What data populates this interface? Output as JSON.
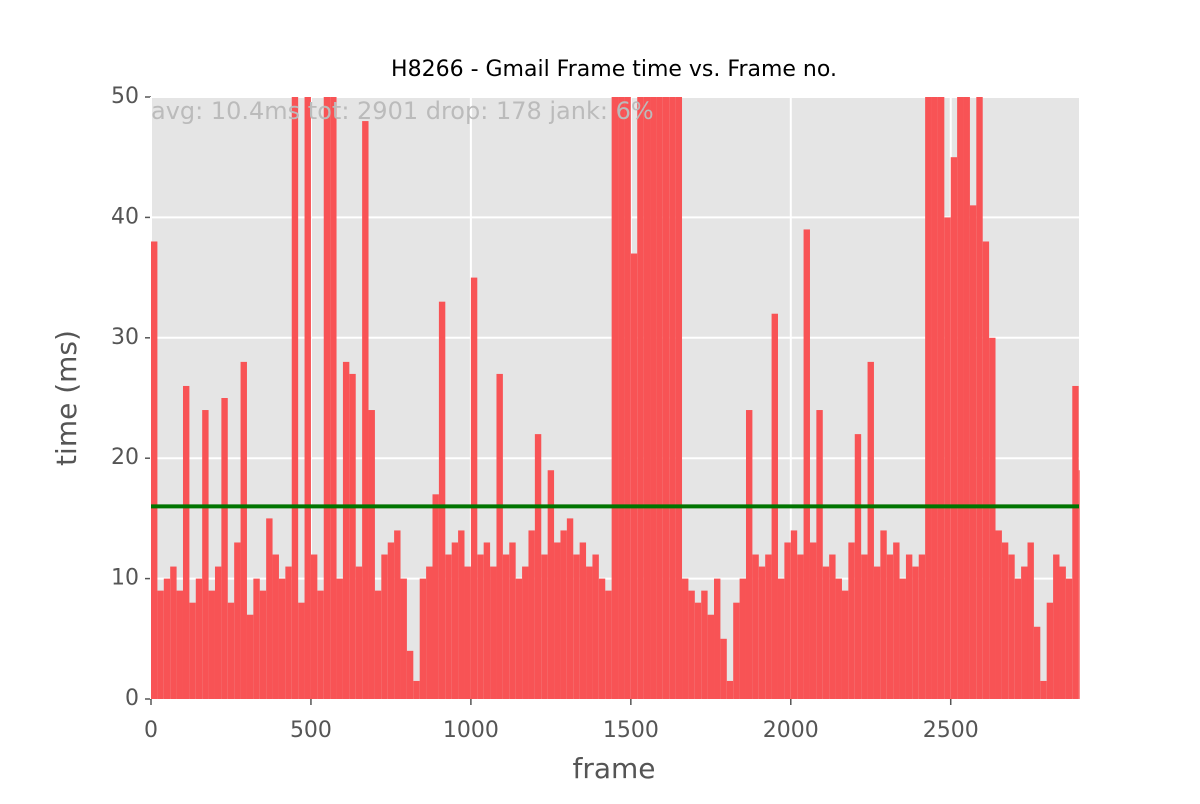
{
  "chart_data": {
    "type": "bar",
    "title": "H8266 - Gmail Frame time vs. Frame no.",
    "annotation": "avg: 10.4ms tot: 2901 drop: 178 jank: 6%",
    "xlabel": "frame",
    "ylabel": "time (ms)",
    "x": [
      0,
      20,
      40,
      60,
      80,
      100,
      120,
      140,
      160,
      180,
      200,
      220,
      240,
      260,
      280,
      300,
      320,
      340,
      360,
      380,
      400,
      420,
      440,
      460,
      480,
      500,
      520,
      540,
      560,
      580,
      600,
      620,
      640,
      660,
      680,
      700,
      720,
      740,
      760,
      780,
      800,
      820,
      840,
      860,
      880,
      900,
      920,
      940,
      960,
      980,
      1000,
      1020,
      1040,
      1060,
      1080,
      1100,
      1120,
      1140,
      1160,
      1180,
      1200,
      1220,
      1240,
      1260,
      1280,
      1300,
      1320,
      1340,
      1360,
      1380,
      1400,
      1420,
      1440,
      1460,
      1480,
      1500,
      1520,
      1540,
      1560,
      1580,
      1600,
      1620,
      1640,
      1660,
      1680,
      1700,
      1720,
      1740,
      1760,
      1780,
      1800,
      1820,
      1840,
      1860,
      1880,
      1900,
      1920,
      1940,
      1960,
      1980,
      2000,
      2020,
      2040,
      2060,
      2080,
      2100,
      2120,
      2140,
      2160,
      2180,
      2200,
      2220,
      2240,
      2260,
      2280,
      2300,
      2320,
      2340,
      2360,
      2380,
      2400,
      2420,
      2440,
      2460,
      2480,
      2500,
      2520,
      2540,
      2560,
      2580,
      2600,
      2620,
      2640,
      2660,
      2680,
      2700,
      2720,
      2740,
      2760,
      2780,
      2800,
      2820,
      2840,
      2860,
      2880,
      2900
    ],
    "values": [
      38,
      9,
      10,
      11,
      9,
      26,
      8,
      10,
      24,
      9,
      11,
      25,
      8,
      13,
      28,
      7,
      10,
      9,
      15,
      12,
      10,
      11,
      50,
      8,
      50,
      12,
      9,
      50,
      50,
      10,
      28,
      27,
      11,
      48,
      24,
      9,
      12,
      13,
      14,
      10,
      4,
      1.5,
      10,
      11,
      17,
      33,
      12,
      13,
      14,
      11,
      35,
      12,
      13,
      11,
      27,
      12,
      13,
      10,
      11,
      14,
      22,
      12,
      19,
      13,
      14,
      15,
      12,
      13,
      11,
      12,
      10,
      9,
      50,
      50,
      50,
      37,
      50,
      50,
      50,
      50,
      50,
      50,
      50,
      10,
      9,
      8,
      9,
      7,
      10,
      5,
      1.5,
      8,
      10,
      24,
      12,
      11,
      12,
      32,
      10,
      13,
      14,
      12,
      39,
      13,
      24,
      11,
      12,
      10,
      9,
      13,
      22,
      12,
      28,
      11,
      14,
      12,
      13,
      10,
      12,
      11,
      12,
      50,
      50,
      50,
      40,
      45,
      50,
      50,
      41,
      50,
      38,
      30,
      14,
      13,
      12,
      10,
      11,
      13,
      6,
      1.5,
      8,
      12,
      11,
      10,
      26,
      19
    ],
    "color": "#f85355",
    "hline": {
      "value": 16,
      "color": "#007500"
    },
    "xlim": [
      0,
      2901
    ],
    "ylim": [
      0,
      50
    ],
    "xticks": [
      0,
      500,
      1000,
      1500,
      2000,
      2500
    ],
    "yticks": [
      0,
      10,
      20,
      30,
      40,
      50
    ],
    "grid": true
  }
}
